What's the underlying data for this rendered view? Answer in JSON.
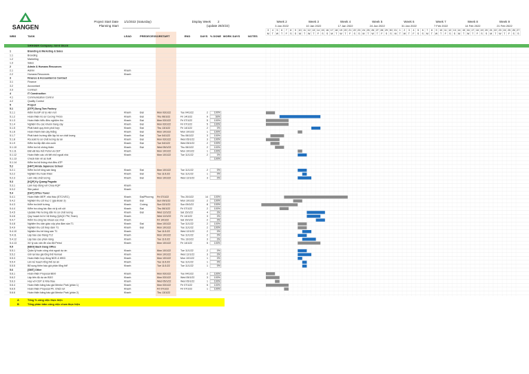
{
  "header": {
    "brand": "SANGEN",
    "project_start_label": "Project Start Date",
    "project_start": "1/1/2022 (Saturday)",
    "planning_start_label": "Planning Start",
    "display_week_label": "Display Week",
    "display_week": "2",
    "update_note": "(update 28/2/22)"
  },
  "columns": [
    "WBS",
    "TASK",
    "LEAD",
    "PREDECESSOR",
    "START",
    "END",
    "DAYS",
    "% DONE",
    "WORK DAYS",
    "NOTES"
  ],
  "company": "SANGEN Company Joint Stock",
  "weeks": [
    {
      "label": "Week 2",
      "date": "3 Jan 2022"
    },
    {
      "label": "Week 3",
      "date": "10 Jan 2022"
    },
    {
      "label": "Week 4",
      "date": "17 Jan 2022"
    },
    {
      "label": "Week 5",
      "date": "24 Jan 2022"
    },
    {
      "label": "Week 6",
      "date": "31 Jan 2022"
    },
    {
      "label": "Week 7",
      "date": "7 Feb 2022"
    },
    {
      "label": "Week 8",
      "date": "14 Feb 2022"
    },
    {
      "label": "Week 9",
      "date": "21 Feb 2022"
    }
  ],
  "days": [
    3,
    4,
    5,
    6,
    7,
    8,
    9,
    10,
    11,
    12,
    13,
    14,
    15,
    16,
    17,
    18,
    19,
    20,
    21,
    22,
    23,
    24,
    25,
    26,
    27,
    28,
    29,
    30,
    31,
    1,
    2,
    3,
    4,
    5,
    6,
    7,
    8,
    9,
    10,
    11,
    12,
    13,
    14,
    15,
    16,
    17,
    18,
    19,
    20,
    21,
    22,
    23,
    24,
    25,
    26,
    27
  ],
  "weekdays": [
    "M",
    "T",
    "W",
    "T",
    "F",
    "S",
    "S",
    "M",
    "T",
    "W",
    "T",
    "F",
    "S",
    "S",
    "M",
    "T",
    "W",
    "T",
    "F",
    "S",
    "S",
    "M",
    "T",
    "W",
    "T",
    "F",
    "S",
    "S",
    "M",
    "T",
    "W",
    "T",
    "F",
    "S",
    "S",
    "M",
    "T",
    "W",
    "T",
    "F",
    "S",
    "S",
    "M",
    "T",
    "W",
    "T",
    "F",
    "S",
    "S",
    "M",
    "T",
    "W",
    "T",
    "F",
    "S",
    "S"
  ],
  "rows": [
    [
      "1",
      "Branding & Marketing & Sales",
      null,
      null,
      null,
      null,
      null,
      null
    ],
    [
      "1.1",
      "Branding",
      null,
      null,
      null,
      null,
      null,
      null
    ],
    [
      "1.2",
      "Marketing",
      null,
      null,
      null,
      null,
      null,
      null
    ],
    [
      "1.3",
      "Sales",
      null,
      null,
      null,
      null,
      null,
      null
    ],
    [
      "2",
      "Admin & Humans Resources",
      null,
      null,
      null,
      null,
      null,
      null
    ],
    [
      "2.1",
      "Admin",
      "Khanh",
      null,
      null,
      null,
      null,
      null
    ],
    [
      "2.2",
      "Humans Resources",
      "Khanh",
      null,
      null,
      null,
      null,
      null
    ],
    [
      "3",
      "Finance & Accountant & Contract",
      null,
      null,
      null,
      null,
      null,
      null
    ],
    [
      "3.1",
      "Finance",
      null,
      null,
      null,
      null,
      null,
      null
    ],
    [
      "3.2",
      "Accountant",
      null,
      null,
      null,
      null,
      null,
      null
    ],
    [
      "3.3",
      "Contract",
      null,
      null,
      null,
      null,
      null,
      null
    ],
    [
      "4",
      "IT Construction",
      null,
      null,
      null,
      null,
      null,
      null
    ],
    [
      "4.1",
      "Communication Control",
      null,
      null,
      null,
      null,
      null,
      null
    ],
    [
      "4.2",
      "Quality Control",
      null,
      null,
      null,
      null,
      null,
      null
    ],
    [
      "5",
      "Project",
      null,
      null,
      null,
      null,
      null,
      null
    ],
    [
      "5.1",
      "[DTP] Dung Tam Factory",
      null,
      null,
      null,
      null,
      null,
      null
    ],
    [
      "5.1.1",
      "Kiểm tra BP xử lý viền nứt",
      "Khanh",
      "Đạt",
      "Mon 03/1/22",
      "Tue 04/1/22",
      2,
      "100%"
    ],
    [
      "5.1.2",
      "Hoàn thiện hồ sơ Cương TVGS",
      "Khanh",
      "Đạt",
      "Thu 06/1/22",
      "Fri 14/1/22",
      9,
      "50%"
    ],
    [
      "5.1.3",
      "Hoàn thiện hiểu điều nghiệm thu",
      "Khanh",
      "Đạt",
      "Mon 03/1/22",
      "Fri 07/1/22",
      5,
      "100%"
    ],
    [
      "5.1.4",
      "Nghiệm thu các khuôn trang cây",
      "Khanh",
      "Đạt",
      "Mon 03/1/22",
      "Fri 07/1/22",
      5,
      "100%"
    ],
    [
      "5.1.5",
      "Phát hành quy trình phối hợp",
      "Khanh",
      "Đạt",
      "Thu 13/1/22",
      "Fri 14/1/22",
      2,
      "0%"
    ],
    [
      "5.1.6",
      "Hoàn thành bản cây thắng",
      "Khanh",
      "Đạt",
      "Mon 10/1/22",
      "Mon 10/1/22",
      1,
      "100%"
    ],
    [
      "5.1.7",
      "Phát hành hướng dẫn lập hồ sơ chất lượng",
      "Khanh",
      "Đạt",
      "Tue 04/1/22",
      "Thu 06/1/22",
      3,
      "100%"
    ],
    [
      "5.1.8",
      "Rà soát hồ sơ chất lượng dự án",
      "Khanh",
      "Đạt",
      "Mon 03/1/22",
      "Wed 05/1/22",
      3,
      "100%"
    ],
    [
      "5.1.9",
      "Kiểm tra lắp đặt cửa cuốn",
      "Khanh",
      "Đạt",
      "Tue 04/1/22",
      "Wed 05/1/22",
      2,
      "100%"
    ],
    [
      "5.1.10",
      "Kiểm tra hệ chống thấm",
      "Khanh",
      "Đạt",
      "Wed 05/1/22",
      "Thu 06/1/22",
      2,
      "100%"
    ],
    [
      "5.1.11",
      "Đặt vật liệu Kết Petrol và CĐT",
      "Khanh",
      null,
      "Mon 10/1/22",
      "Mon 10/1/22",
      1,
      "100%"
    ],
    [
      "5.1.12",
      "Hoàn thiện các chi tiết nhỏ ngoài nhà",
      "Khanh",
      null,
      "Mon 10/1/22",
      "Tue 11/1/22",
      2,
      "0%"
    ],
    [
      "5.1.13",
      "Check bản vẽ as built",
      null,
      null,
      null,
      null,
      null,
      "100%"
    ],
    [
      "5.1.14",
      "Kiểm tra hệ thống nhà điều ATP",
      null,
      null,
      null,
      null,
      null,
      null
    ],
    [
      "5.2",
      "[HHT] Hirata Japanese School",
      null,
      null,
      null,
      null,
      null,
      null
    ],
    [
      "5.2.1",
      "Kiểm tra bê tông sàn tầng",
      "Khanh",
      "Đạt",
      "Mon 10/1/22",
      "Tue 11/1/22",
      2,
      "0%"
    ],
    [
      "5.2.2",
      "Nghiệm thu hoàn thiện",
      "Khanh",
      "Đạt",
      "Tue 11/1/22",
      "Tue 11/1/22",
      1,
      "0%"
    ],
    [
      "5.2.3",
      "Làm việc chất lượng",
      "Khanh",
      "Đạt",
      "Mon 10/1/22",
      "Wed 12/1/22",
      3,
      "0%"
    ],
    [
      "5.3",
      "[KQP] Ky Quang Pagoda",
      null,
      null,
      null,
      null,
      null,
      null
    ],
    [
      "5.3.1",
      "Làm hợp đồng với Chùa KQP",
      "Khanh",
      null,
      null,
      null,
      null,
      null
    ],
    [
      "5.3.2",
      "Site patrol",
      "Khanh",
      null,
      null,
      null,
      null,
      null
    ],
    [
      "5.4",
      "[DAT] Office Tower",
      null,
      null,
      null,
      null,
      null,
      null
    ],
    [
      "5.4.1",
      "Hoàn thiện MEP, nhà thầu (STC/VEC)",
      "Khanh",
      "Đạt/Phương",
      "Fri 07/1/22",
      "Thu 20/1/22",
      14,
      "100%"
    ],
    [
      "5.4.2",
      "Nghiệm thu cốt trục C (gia Đoàn 3)",
      "Khanh",
      "Đạt",
      "Sun 09/1/22",
      "Mon 10/1/22",
      2,
      "100%"
    ],
    [
      "5.4.3",
      "Kiểm tra khởi tường",
      "Khanh",
      "Cường",
      "Sun 02/1/22",
      "Sun 09/1/22",
      8,
      "100%"
    ],
    [
      "5.4.4",
      "Kiểm tra công tác đào và lý cốt cột",
      "Khanh",
      "Đạt",
      "Thu 06/1/22",
      "Fri 07/1/22",
      2,
      "100%"
    ],
    [
      "5.4.5",
      "Update File hướng dẫn hồ sơ chất lượng",
      "Khanh",
      "Đạt",
      "Wed 12/1/22",
      "Sat 15/1/22",
      4,
      "0%"
    ],
    [
      "5.4.6",
      "Quy hoạch bố trí hệ thống (QAQC PM, Team)",
      "Khanh",
      null,
      "Wed 12/1/22",
      "Fri 14/1/22",
      3,
      "0%"
    ],
    [
      "5.4.7",
      "Kiểm tra công tác khoan cọc nhồi",
      "Khanh",
      null,
      "Fri 14/1/22",
      "Sat 15/1/22",
      2,
      "0%"
    ],
    [
      "5.4.8",
      "Nghiệm thu dàn giáo cốp pha đầm sàn T1",
      "Khanh",
      "Đạt",
      "Mon 10/1/22",
      "Tue 11/1/22",
      2,
      "100%"
    ],
    [
      "5.4.9",
      "Nghiệm thu cốt thép dầm T1",
      "Khanh",
      "Đạt",
      "Mon 10/1/22",
      "Tue 11/1/22",
      2,
      "100%"
    ],
    [
      "5.4.10",
      "Nghiệm thu bê tông sàn T1",
      "Khanh",
      null,
      "Tue 11/1/22",
      "Wed 12/1/22",
      2,
      "0%"
    ],
    [
      "5.4.11",
      "Lập báo cáo tháng T12",
      "Khanh",
      null,
      "Mon 10/1/22",
      "Tue 11/1/22",
      2,
      "0%"
    ],
    [
      "5.4.12",
      "Lập báo cáo phần nâng",
      "Khanh",
      null,
      "Tue 11/1/22",
      "Thu 13/1/22",
      3,
      "0%"
    ],
    [
      "5.4.13",
      "Xử lý các vấn đề của đội Petrol",
      "Khanh",
      null,
      "Mon 10/1/22",
      "Fri 14/1/22",
      5,
      "100%"
    ],
    [
      "5.5",
      "[BDO] Bach Dang Office",
      null,
      null,
      null,
      null,
      null,
      null
    ],
    [
      "5.5.1",
      "Quản lý hoàn công nhà ngoài dự án",
      "Khanh",
      null,
      "Mon 10/1/22",
      "Tue 11/1/22",
      2,
      "0%"
    ],
    [
      "5.5.2",
      "Gửi lại báo giá tổng thể Nomad",
      "Khanh",
      null,
      "Mon 10/1/22",
      "Wed 12/1/22",
      3,
      "0%"
    ],
    [
      "5.5.3",
      "Hoàn thiện hợp đồng NDS & WKD",
      "Khanh",
      null,
      "Mon 10/1/22",
      "Mon 10/1/22",
      1,
      "0%"
    ],
    [
      "5.5.4",
      "Lên kế hoạch tổng thể dự án",
      "Khanh",
      null,
      "Tue 11/1/22",
      "Tue 11/1/22",
      1,
      "0%"
    ],
    [
      "5.5.5",
      "Bổ sung thêm báo giá phân tổng thể",
      "Khanh",
      null,
      "Tue 11/1/22",
      "Tue 11/1/22",
      1,
      "0%"
    ],
    [
      "5.6",
      "[SMT] Other",
      null,
      null,
      null,
      null,
      null,
      null
    ],
    [
      "5.6.1",
      "Hoàn thiện Proposal BDO",
      "Khanh",
      null,
      "Mon 03/1/22",
      "Tue 04/1/22",
      2,
      "100%"
    ],
    [
      "5.6.2",
      "Lập tiến độ dự án BDO",
      "Khanh",
      null,
      "Mon 03/1/22",
      "Wed 05/1/22",
      3,
      "100%"
    ],
    [
      "5.6.3",
      "Họp với CĐT & Nhà thầu",
      "Khanh",
      null,
      "Wed 05/1/22",
      "Wed 05/1/22",
      1,
      "100%"
    ],
    [
      "5.6.4",
      "Hoàn thiện bảng báo giá Mentor Park (phần 1)",
      "Khanh",
      null,
      "Mon 03/1/22",
      "Fri 07/1/22",
      5,
      "100%"
    ],
    [
      "5.6.5",
      "Hoàn thiện Proposal Ph. Chiến lợi",
      "Khanh",
      null,
      "Fri 07/1/22",
      "Fri 07/1/22",
      1,
      "100%"
    ],
    [
      "5.6.6",
      "Hoàn thiện bảng báo giá Mentor Park (phần 2)",
      "Khanh",
      null,
      "Thu 13/1/22",
      null,
      null,
      null
    ]
  ],
  "summary": [
    [
      "A",
      "Tổng % công việc thực hiện"
    ],
    [
      "B",
      "Tổng phần trăm công việc chưa thực hiện"
    ]
  ]
}
